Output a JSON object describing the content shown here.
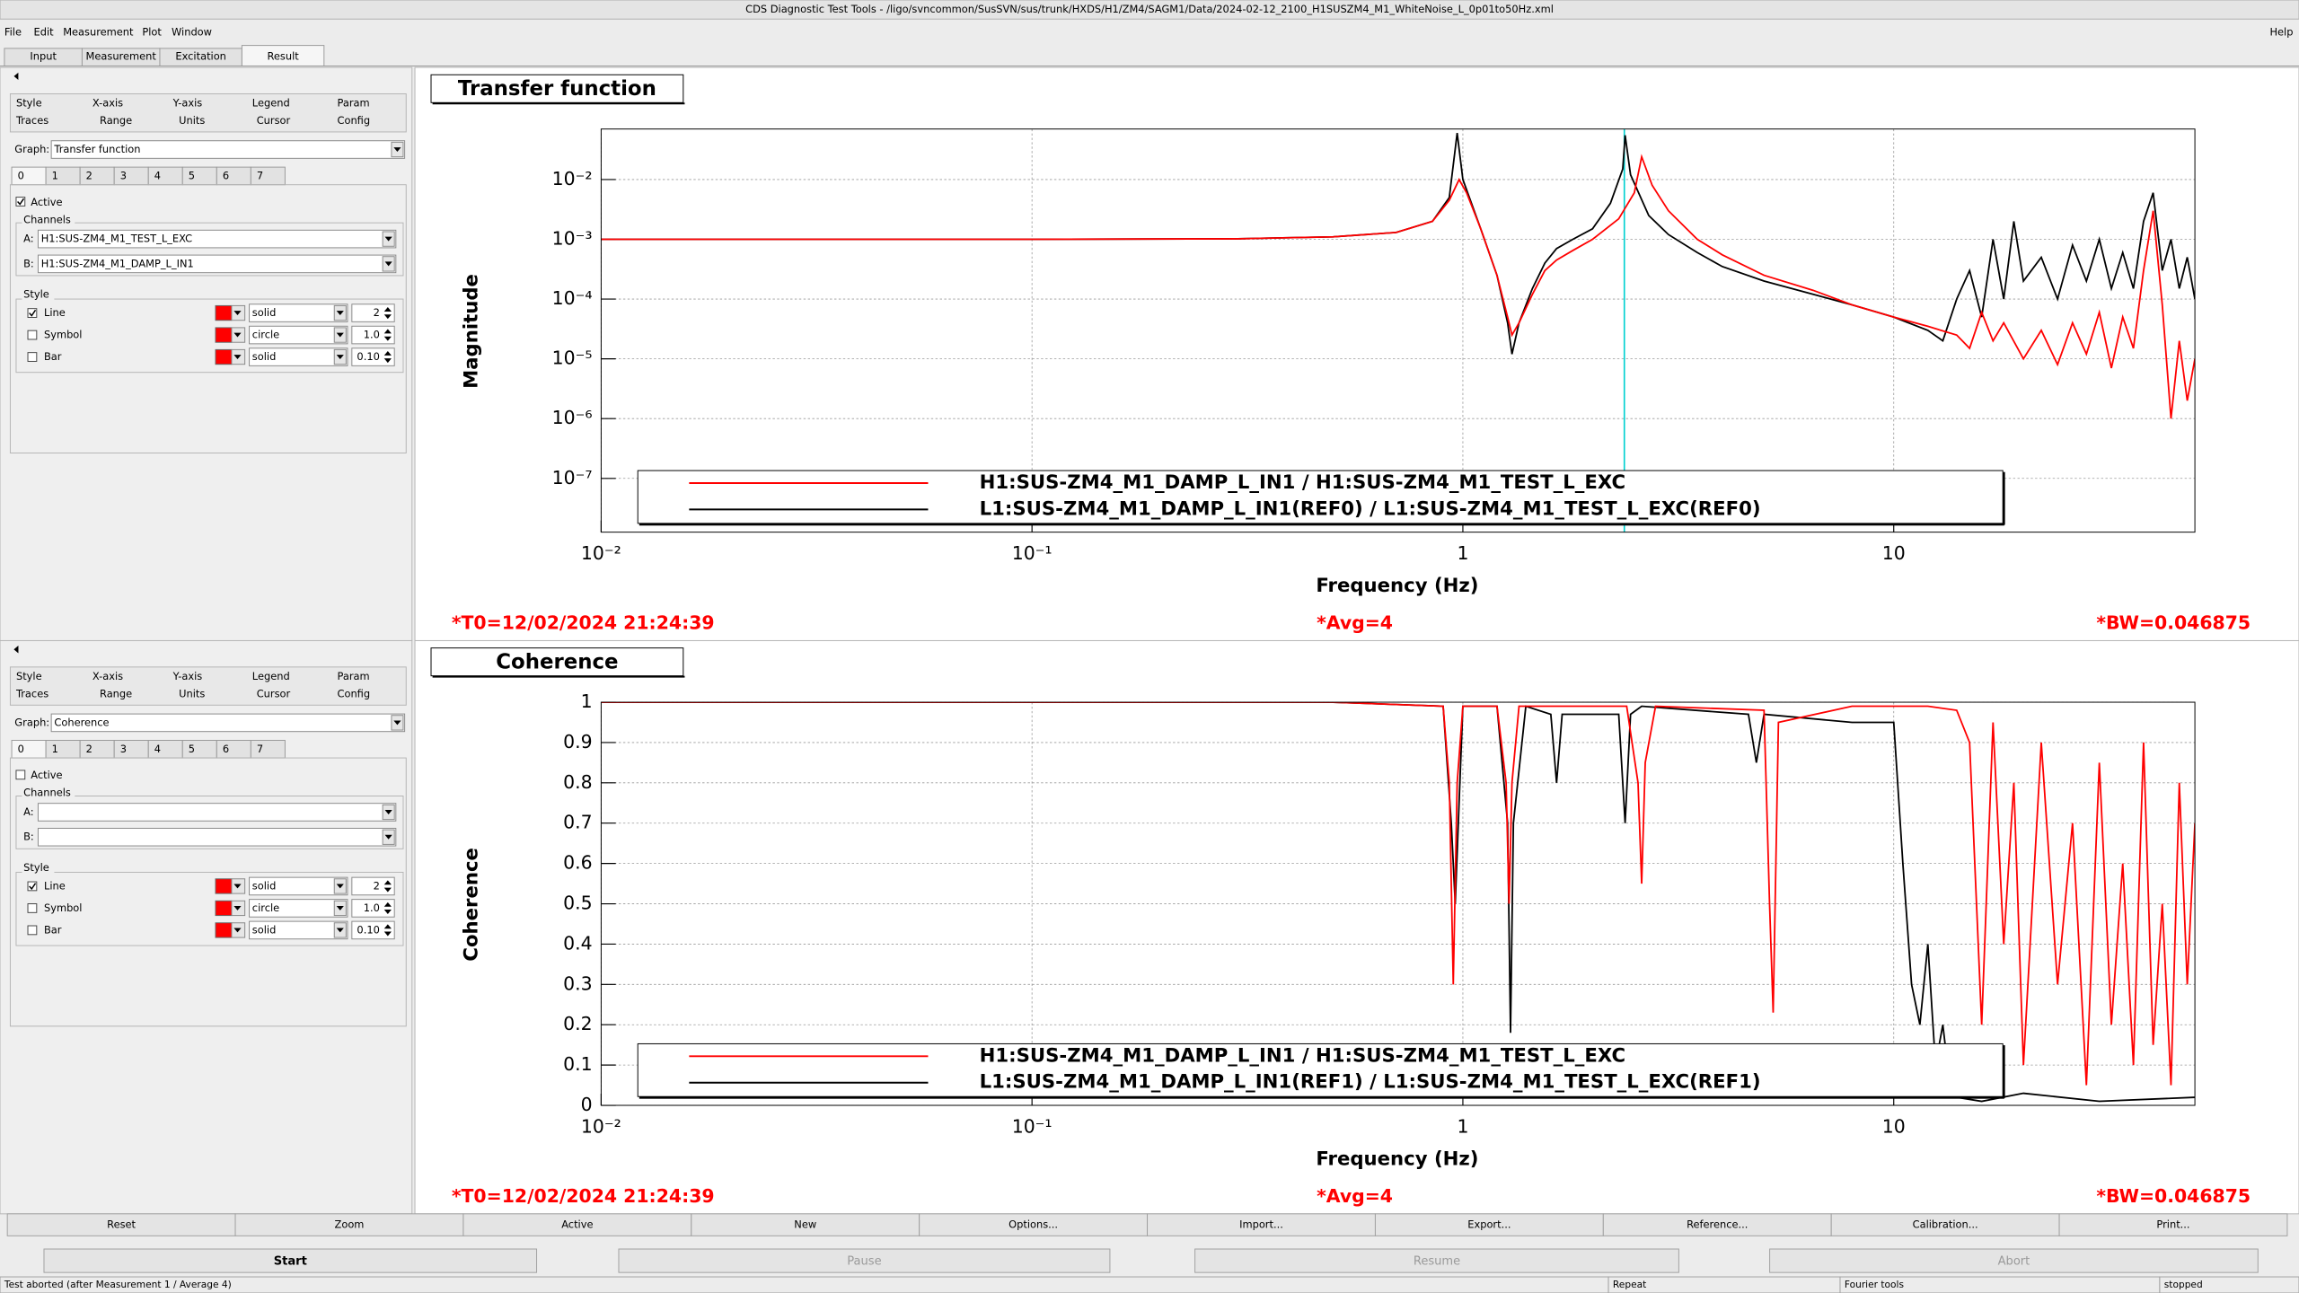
{
  "window_title": "CDS Diagnostic Test Tools - /ligo/svncommon/SusSVN/sus/trunk/HXDS/H1/ZM4/SAGM1/Data/2024-02-12_2100_H1SUSZM4_M1_WhiteNoise_L_0p01to50Hz.xml",
  "menu": [
    "File",
    "Edit",
    "Measurement",
    "Plot",
    "Window"
  ],
  "help": "Help",
  "tabs": [
    "Input",
    "Measurement",
    "Excitation",
    "Result"
  ],
  "active_tab": 3,
  "panels": [
    {
      "option_tabs": [
        [
          "Style",
          "X-axis",
          "Y-axis",
          "Legend",
          "Param"
        ],
        [
          "Traces",
          "Range",
          "Units",
          "Cursor",
          "Config"
        ]
      ],
      "graph_label": "Graph:",
      "graph": "Transfer function",
      "trace_tabs": [
        "0",
        "1",
        "2",
        "3",
        "4",
        "5",
        "6",
        "7"
      ],
      "active_label": "Active",
      "active": true,
      "channels_label": "Channels",
      "channels": [
        {
          "label": "A:",
          "value": "H1:SUS-ZM4_M1_TEST_L_EXC"
        },
        {
          "label": "B:",
          "value": "H1:SUS-ZM4_M1_DAMP_L_IN1"
        }
      ],
      "style_label": "Style",
      "style_rows": [
        {
          "label": "Line",
          "checked": true,
          "color": "#ff0000",
          "kind": "solid",
          "size": "2"
        },
        {
          "label": "Symbol",
          "checked": false,
          "color": "#ff0000",
          "kind": "circle",
          "size": "1.0"
        },
        {
          "label": "Bar",
          "checked": false,
          "color": "#ff0000",
          "kind": "solid",
          "size": "0.10"
        }
      ]
    },
    {
      "option_tabs": [
        [
          "Style",
          "X-axis",
          "Y-axis",
          "Legend",
          "Param"
        ],
        [
          "Traces",
          "Range",
          "Units",
          "Cursor",
          "Config"
        ]
      ],
      "graph_label": "Graph:",
      "graph": "Coherence",
      "trace_tabs": [
        "0",
        "1",
        "2",
        "3",
        "4",
        "5",
        "6",
        "7"
      ],
      "active_label": "Active",
      "active": false,
      "channels_label": "Channels",
      "channels": [
        {
          "label": "A:",
          "value": ""
        },
        {
          "label": "B:",
          "value": ""
        }
      ],
      "style_label": "Style",
      "style_rows": [
        {
          "label": "Line",
          "checked": true,
          "color": "#ff0000",
          "kind": "solid",
          "size": "2"
        },
        {
          "label": "Symbol",
          "checked": false,
          "color": "#ff0000",
          "kind": "circle",
          "size": "1.0"
        },
        {
          "label": "Bar",
          "checked": false,
          "color": "#ff0000",
          "kind": "solid",
          "size": "0.10"
        }
      ]
    }
  ],
  "chart_data": [
    {
      "type": "line",
      "title": "Transfer function",
      "xlabel": "Frequency (Hz)",
      "ylabel": "Magnitude",
      "xscale": "log",
      "yscale": "log",
      "grid": true,
      "xlim": [
        0.01,
        50
      ],
      "ylim": [
        1.26e-08,
        0.07
      ],
      "xticks": [
        {
          "value": 0.01,
          "label": "10⁻²"
        },
        {
          "value": 0.1,
          "label": "10⁻¹"
        },
        1,
        10
      ],
      "yticks": [
        {
          "value": 1e-07,
          "label": "10⁻⁷"
        },
        {
          "value": 1e-06,
          "label": "10⁻⁶"
        },
        {
          "value": 1e-05,
          "label": "10⁻⁵"
        },
        {
          "value": 0.0001,
          "label": "10⁻⁴"
        },
        {
          "value": 0.001,
          "label": "10⁻³"
        },
        {
          "value": 0.01,
          "label": "10⁻²"
        }
      ],
      "cursor": {
        "x": 2.37,
        "color": "#00d0d0"
      },
      "series": [
        {
          "name": "H1:SUS-ZM4_M1_DAMP_L_IN1 / H1:SUS-ZM4_M1_TEST_L_EXC",
          "color": "#ff0000",
          "x": [
            0.01,
            0.03,
            0.1,
            0.3,
            0.5,
            0.7,
            0.85,
            0.93,
            0.98,
            1.02,
            1.1,
            1.2,
            1.27,
            1.3,
            1.35,
            1.45,
            1.55,
            1.65,
            1.8,
            2.0,
            2.3,
            2.5,
            2.6,
            2.75,
            3.0,
            3.5,
            4,
            5,
            6.5,
            8,
            10,
            12,
            14,
            15,
            16,
            17,
            18,
            20,
            22,
            24,
            26,
            28,
            30,
            32,
            34,
            36,
            38,
            40,
            42,
            44,
            46,
            48,
            50
          ],
          "values": [
            0.001,
            0.001,
            0.001,
            0.00102,
            0.0011,
            0.0013,
            0.002,
            0.0045,
            0.01,
            0.006,
            0.0015,
            0.00025,
            5e-05,
            2.5e-05,
            4e-05,
            0.00012,
            0.0003,
            0.00045,
            0.00065,
            0.001,
            0.0022,
            0.006,
            0.024,
            0.008,
            0.003,
            0.001,
            0.00055,
            0.00025,
            0.00014,
            8e-05,
            5e-05,
            3.5e-05,
            2.5e-05,
            1.5e-05,
            6e-05,
            2e-05,
            4e-05,
            1e-05,
            3e-05,
            8e-06,
            4e-05,
            1.2e-05,
            6e-05,
            7e-06,
            5e-05,
            1.5e-05,
            0.0003,
            0.003,
            8e-05,
            1e-06,
            2e-05,
            2e-06,
            1e-05
          ]
        },
        {
          "name": "L1:SUS-ZM4_M1_DAMP_L_IN1(REF0) / L1:SUS-ZM4_M1_TEST_L_EXC(REF0)",
          "color": "#000000",
          "x": [
            0.01,
            0.03,
            0.1,
            0.3,
            0.5,
            0.7,
            0.85,
            0.93,
            0.97,
            1.0,
            1.1,
            1.2,
            1.27,
            1.3,
            1.35,
            1.45,
            1.55,
            1.65,
            1.8,
            2.0,
            2.2,
            2.35,
            2.38,
            2.45,
            2.7,
            3.0,
            3.5,
            4,
            5,
            6.5,
            8,
            10,
            12,
            13,
            14,
            15,
            16,
            17,
            18,
            19,
            20,
            22,
            24,
            26,
            28,
            30,
            32,
            34,
            36,
            38,
            40,
            42,
            44,
            46,
            48,
            50
          ],
          "values": [
            0.001,
            0.001,
            0.001,
            0.00102,
            0.0011,
            0.0013,
            0.002,
            0.005,
            0.06,
            0.01,
            0.0015,
            0.00025,
            4e-05,
            1.2e-05,
            4e-05,
            0.00015,
            0.0004,
            0.0007,
            0.001,
            0.0015,
            0.004,
            0.015,
            0.055,
            0.012,
            0.0025,
            0.0012,
            0.0006,
            0.00035,
            0.0002,
            0.00012,
            8e-05,
            5e-05,
            3e-05,
            2e-05,
            0.0001,
            0.0003,
            5e-05,
            0.001,
            0.0001,
            0.002,
            0.0002,
            0.0005,
            0.0001,
            0.0008,
            0.0002,
            0.001,
            0.00015,
            0.0006,
            0.00015,
            0.002,
            0.006,
            0.0003,
            0.001,
            0.00015,
            0.0005,
            0.0001
          ]
        }
      ],
      "annotations": [
        "*T0=12/02/2024 21:24:39",
        "*Avg=4",
        "*BW=0.046875"
      ]
    },
    {
      "type": "line",
      "title": "Coherence",
      "xlabel": "Frequency (Hz)",
      "ylabel": "Coherence",
      "xscale": "log",
      "yscale": "linear",
      "grid": true,
      "xlim": [
        0.01,
        50
      ],
      "ylim": [
        0,
        1
      ],
      "xticks": [
        {
          "value": 0.01,
          "label": "10⁻²"
        },
        {
          "value": 0.1,
          "label": "10⁻¹"
        },
        1,
        10
      ],
      "yticks": [
        0,
        0.1,
        0.2,
        0.3,
        0.4,
        0.5,
        0.6,
        0.7,
        0.8,
        0.9,
        1
      ],
      "series": [
        {
          "name": "H1:SUS-ZM4_M1_DAMP_L_IN1 / H1:SUS-ZM4_M1_TEST_L_EXC",
          "color": "#ff0000",
          "x": [
            0.01,
            0.5,
            0.9,
            0.93,
            0.95,
            0.97,
            1.0,
            1.2,
            1.26,
            1.28,
            1.3,
            1.35,
            2.4,
            2.55,
            2.6,
            2.65,
            2.8,
            5.0,
            5.15,
            5.25,
            5.4,
            8,
            12,
            14,
            15,
            16,
            17,
            18,
            19,
            20,
            22,
            24,
            26,
            28,
            30,
            32,
            34,
            36,
            38,
            40,
            42,
            44,
            46,
            48,
            50
          ],
          "values": [
            1,
            1,
            0.99,
            0.8,
            0.3,
            0.8,
            0.99,
            0.99,
            0.8,
            0.5,
            0.8,
            0.99,
            0.99,
            0.8,
            0.55,
            0.85,
            0.99,
            0.98,
            0.5,
            0.23,
            0.95,
            0.99,
            0.99,
            0.98,
            0.9,
            0.2,
            0.95,
            0.4,
            0.8,
            0.1,
            0.9,
            0.3,
            0.7,
            0.05,
            0.85,
            0.2,
            0.6,
            0.1,
            0.9,
            0.15,
            0.5,
            0.05,
            0.8,
            0.3,
            0.7
          ]
        },
        {
          "name": "L1:SUS-ZM4_M1_DAMP_L_IN1(REF1) / L1:SUS-ZM4_M1_TEST_L_EXC(REF1)",
          "color": "#000000",
          "x": [
            0.01,
            0.5,
            0.9,
            0.94,
            0.96,
            0.98,
            1.0,
            1.2,
            1.27,
            1.29,
            1.31,
            1.4,
            1.6,
            1.65,
            1.7,
            2.3,
            2.38,
            2.45,
            2.6,
            4.6,
            4.8,
            5.0,
            8,
            10,
            10.5,
            11,
            11.5,
            12,
            12.5,
            13,
            13.5,
            14,
            16,
            20,
            30,
            50
          ],
          "values": [
            1,
            1,
            0.99,
            0.7,
            0.5,
            0.75,
            0.99,
            0.99,
            0.7,
            0.18,
            0.7,
            0.99,
            0.97,
            0.8,
            0.97,
            0.97,
            0.7,
            0.97,
            0.99,
            0.97,
            0.85,
            0.97,
            0.95,
            0.95,
            0.6,
            0.3,
            0.2,
            0.4,
            0.1,
            0.2,
            0.05,
            0.02,
            0.01,
            0.03,
            0.01,
            0.02
          ]
        }
      ],
      "annotations": [
        "*T0=12/02/2024 21:24:39",
        "*Avg=4",
        "*BW=0.046875"
      ]
    }
  ],
  "buttons": [
    "Reset",
    "Zoom",
    "Active",
    "New",
    "Options...",
    "Import...",
    "Export...",
    "Reference...",
    "Calibration...",
    "Print..."
  ],
  "controls": [
    {
      "label": "Start",
      "enabled": true
    },
    {
      "label": "Pause",
      "enabled": false
    },
    {
      "label": "Resume",
      "enabled": false
    },
    {
      "label": "Abort",
      "enabled": false
    }
  ],
  "status": [
    "Test aborted (after Measurement 1 / Average 4)",
    "Repeat",
    "Fourier tools",
    "stopped"
  ]
}
